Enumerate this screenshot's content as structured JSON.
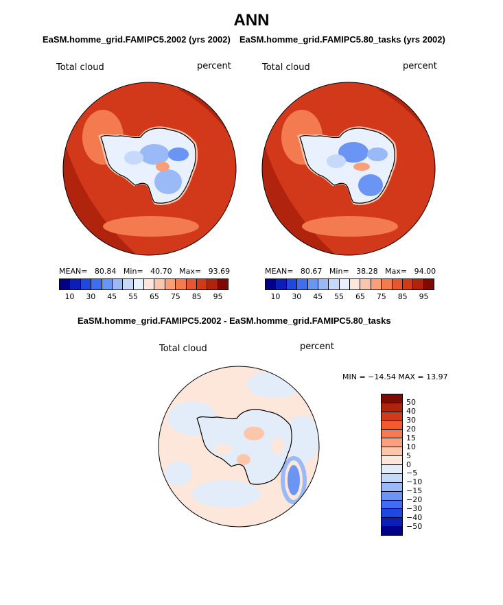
{
  "title": "ANN",
  "panels": [
    {
      "subtitle": "EaSM.homme_grid.FAMIPC5.2002 (yrs 2002)",
      "variable": "Total cloud",
      "units": "percent",
      "stats": {
        "mean_label": "MEAN=",
        "mean": "80.84",
        "min_label": "Min=",
        "min": "40.70",
        "max_label": "Max=",
        "max": "93.69"
      }
    },
    {
      "subtitle": "EaSM.homme_grid.FAMIPC5.80_tasks (yrs 2002)",
      "variable": "Total cloud",
      "units": "percent",
      "stats": {
        "mean_label": "MEAN=",
        "mean": "80.67",
        "min_label": "Min=",
        "min": "38.28",
        "max_label": "Max=",
        "max": "94.00"
      }
    }
  ],
  "abs_colorbar": {
    "ticks": [
      "10",
      "30",
      "45",
      "55",
      "65",
      "75",
      "85",
      "95"
    ],
    "colors": [
      "#00008b",
      "#0a1fb8",
      "#1f48e0",
      "#3f6ff0",
      "#6b95f5",
      "#9ab9f7",
      "#c6d9fa",
      "#e8f1fd",
      "#fde6da",
      "#fcc6ab",
      "#f9a07b",
      "#f47a50",
      "#e85530",
      "#d2381a",
      "#b0230d",
      "#7f0a04"
    ]
  },
  "diff": {
    "subtitle": "EaSM.homme_grid.FAMIPC5.2002 - EaSM.homme_grid.FAMIPC5.80_tasks",
    "variable": "Total cloud",
    "units": "percent",
    "minmax": "MIN = −14.54  MAX =  13.97",
    "labels": [
      "50",
      "40",
      "30",
      "20",
      "15",
      "10",
      "5",
      "0",
      "−5",
      "−10",
      "−15",
      "−20",
      "−30",
      "−40",
      "−50"
    ],
    "colors": [
      "#7f0a04",
      "#b0230d",
      "#d2381a",
      "#f45a2e",
      "#f47a50",
      "#f9a07b",
      "#fcc6ab",
      "#fde6da",
      "#e3edf9",
      "#c6d9fa",
      "#9ab9f7",
      "#6b95f5",
      "#3f6ff0",
      "#1f48e0",
      "#0a1fb8",
      "#00008b"
    ]
  }
}
